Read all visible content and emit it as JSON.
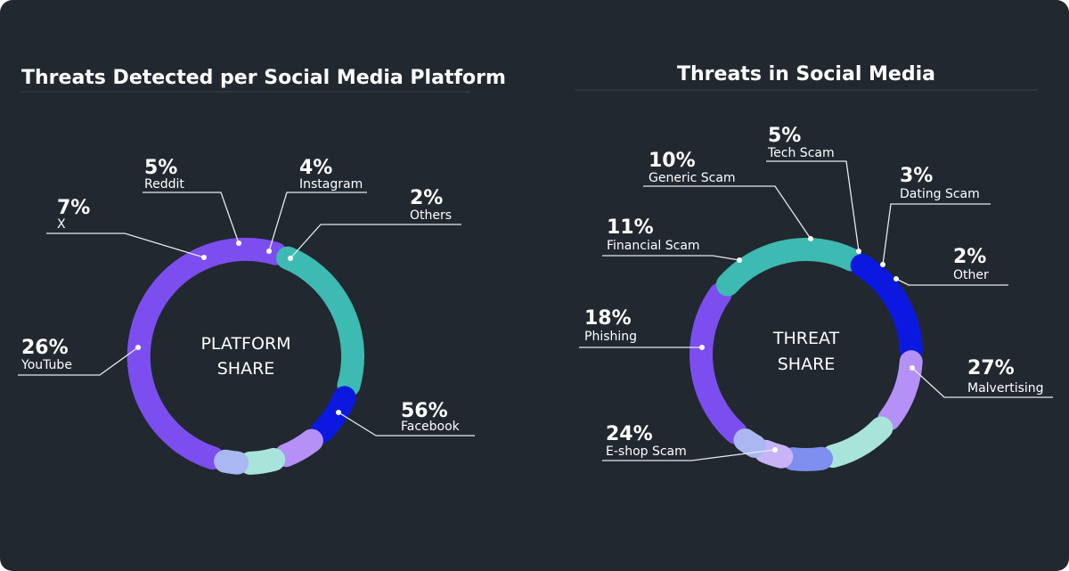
{
  "colors": {
    "background": "#212830",
    "purple": "#7c4ef0",
    "lavender": "#b490f7",
    "teal": "#3dbab2",
    "mint": "#a8e4da",
    "periwinkle": "#7f8ff0",
    "light_lavender": "#c7b3f5",
    "pale_blue": "#aab8f2",
    "blue": "#0b19e0"
  },
  "chart_data": [
    {
      "type": "pie",
      "title": "Threats Detected per Social Media Platform",
      "center_label": [
        "PLATFORM",
        "SHARE"
      ],
      "unit": "%",
      "slices": [
        {
          "label": "Facebook",
          "value": 56,
          "display": "56%",
          "color": "#7c4ef0"
        },
        {
          "label": "YouTube",
          "value": 26,
          "display": "26%",
          "color": "#3dbab2"
        },
        {
          "label": "X",
          "value": 7,
          "display": "7%",
          "color": "#0b19e0"
        },
        {
          "label": "Reddit",
          "value": 5,
          "display": "5%",
          "color": "#b490f7"
        },
        {
          "label": "Instagram",
          "value": 4,
          "display": "4%",
          "color": "#a8e4da"
        },
        {
          "label": "Others",
          "value": 2,
          "display": "2%",
          "color": "#aab8f2"
        }
      ]
    },
    {
      "type": "pie",
      "title": "Threats in Social Media",
      "center_label": [
        "THREAT",
        "SHARE"
      ],
      "unit": "%",
      "slices": [
        {
          "label": "Malvertising",
          "value": 27,
          "display": "27%",
          "color": "#7c4ef0"
        },
        {
          "label": "E-shop Scam",
          "value": 24,
          "display": "24%",
          "color": "#3dbab2"
        },
        {
          "label": "Phishing",
          "value": 18,
          "display": "18%",
          "color": "#0b19e0"
        },
        {
          "label": "Financial Scam",
          "value": 11,
          "display": "11%",
          "color": "#b490f7"
        },
        {
          "label": "Generic Scam",
          "value": 10,
          "display": "10%",
          "color": "#a8e4da"
        },
        {
          "label": "Tech Scam",
          "value": 5,
          "display": "5%",
          "color": "#7f8ff0"
        },
        {
          "label": "Dating Scam",
          "value": 3,
          "display": "3%",
          "color": "#c7b3f5"
        },
        {
          "label": "Other",
          "value": 2,
          "display": "2%",
          "color": "#aab8f2"
        }
      ]
    }
  ]
}
